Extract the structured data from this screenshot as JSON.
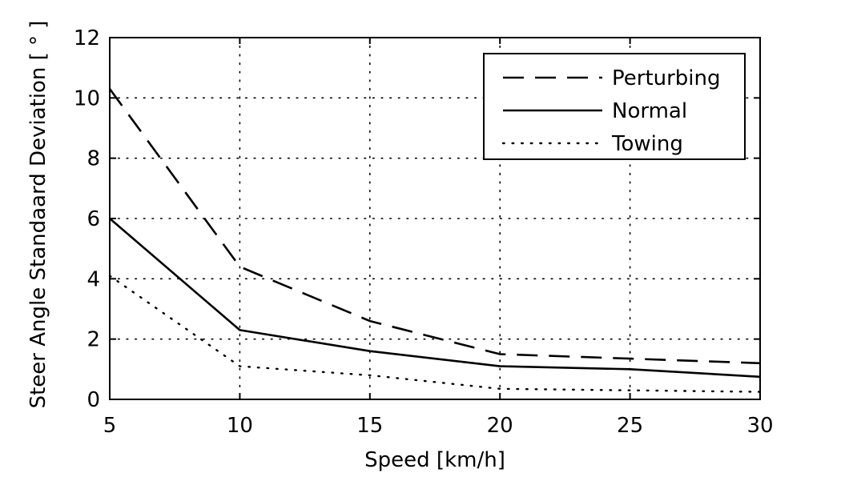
{
  "chart_data": {
    "type": "line",
    "title": "",
    "xlabel": "Speed [km/h]",
    "ylabel": "Steer Angle Standaard Deviation [ ° ]",
    "xlim": [
      5,
      30
    ],
    "ylim": [
      0,
      12
    ],
    "xticks": [
      5,
      10,
      15,
      20,
      25,
      30
    ],
    "yticks": [
      0,
      2,
      4,
      6,
      8,
      10,
      12
    ],
    "grid": true,
    "legend_position": "top-right",
    "x": [
      5,
      10,
      15,
      20,
      25,
      30
    ],
    "series": [
      {
        "name": "Perturbing",
        "style": "dashed",
        "color": "#000000",
        "values": [
          10.3,
          4.4,
          2.6,
          1.5,
          1.35,
          1.2
        ]
      },
      {
        "name": "Normal",
        "style": "solid",
        "color": "#000000",
        "values": [
          6.0,
          2.3,
          1.6,
          1.1,
          1.0,
          0.75
        ]
      },
      {
        "name": "Towing",
        "style": "dotted",
        "color": "#000000",
        "values": [
          4.1,
          1.1,
          0.8,
          0.35,
          0.3,
          0.25
        ]
      }
    ]
  }
}
